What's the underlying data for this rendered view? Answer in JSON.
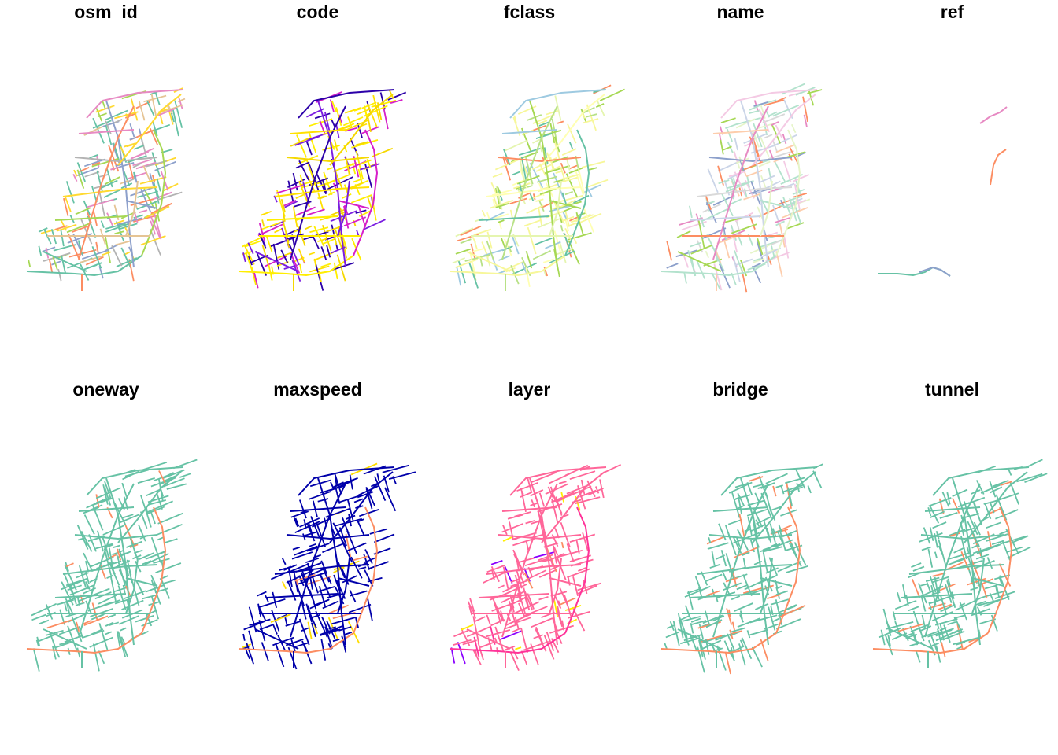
{
  "figure": {
    "panels": [
      {
        "title": "osm_id",
        "palette": "osm_id"
      },
      {
        "title": "code",
        "palette": "code"
      },
      {
        "title": "fclass",
        "palette": "fclass"
      },
      {
        "title": "name",
        "palette": "name"
      },
      {
        "title": "ref",
        "palette": "ref"
      },
      {
        "title": "oneway",
        "palette": "twoclass"
      },
      {
        "title": "maxspeed",
        "palette": "maxspeed"
      },
      {
        "title": "layer",
        "palette": "layer"
      },
      {
        "title": "bridge",
        "palette": "twoclass"
      },
      {
        "title": "tunnel",
        "palette": "twoclass"
      }
    ]
  },
  "palettes": {
    "osm_id": [
      "#66c2a5",
      "#fc8d62",
      "#8da0cb",
      "#e78ac3",
      "#a6d854",
      "#ffd92f",
      "#e5c494",
      "#b3b3b3"
    ],
    "code": [
      "#ffee00",
      "#f5d800",
      "#7a1de0",
      "#2b00a8",
      "#d61fc9",
      "#ffe000"
    ],
    "fclass": [
      "#f7f79a",
      "#b8e186",
      "#a6d854",
      "#9ecae1",
      "#66c2a5",
      "#ffffb3",
      "#e5f5b0",
      "#fc8d62"
    ],
    "name": [
      "#b3e2cd",
      "#fdcdac",
      "#cbd5e8",
      "#f4cae4",
      "#e6f5c9",
      "#d9d9d9",
      "#fc8d62",
      "#8da0cb",
      "#a6d854",
      "#e78ac3"
    ],
    "ref": [
      "#e78ac3",
      "#fc8d62",
      "#66c2a5",
      "#8da0cb"
    ],
    "twoclass": [
      "#66c2a5",
      "#fc8d62"
    ],
    "maxspeed": [
      "#0000aa",
      "#fc8d62",
      "#ffdd00"
    ],
    "layer": [
      "#ff6699",
      "#ff3399",
      "#8a00ff",
      "#ffee00",
      "#fc8d62"
    ]
  }
}
